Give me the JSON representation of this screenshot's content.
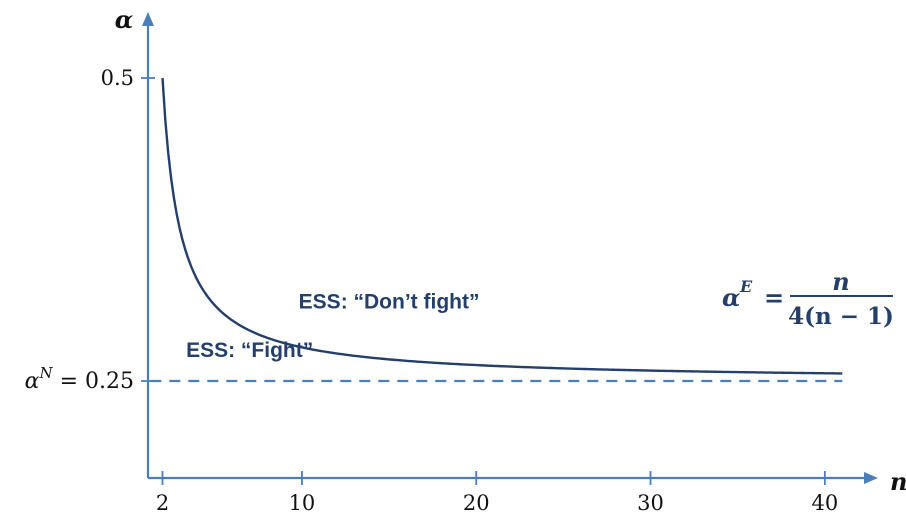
{
  "chart_data": {
    "type": "line",
    "x_label": "n",
    "y_label": "α",
    "x_ticks": [
      2,
      10,
      20,
      30,
      40
    ],
    "y_ticks": [
      {
        "value": 0.5,
        "label": "0.5"
      },
      {
        "value": 0.25,
        "label": "α^N = 0.25"
      }
    ],
    "xlim": [
      1.3,
      42
    ],
    "ylim": [
      0.17,
      0.5
    ],
    "series": [
      {
        "type": "curve",
        "formula": "n / (4(n − 1))",
        "color": "#243f6a",
        "x": [
          2,
          2.5,
          3,
          4,
          5,
          6,
          8,
          10,
          12,
          15,
          20,
          25,
          30,
          35,
          41
        ],
        "y": [
          0.5,
          0.4167,
          0.375,
          0.3333,
          0.3125,
          0.3,
          0.2857,
          0.2778,
          0.2727,
          0.2679,
          0.2632,
          0.2604,
          0.2586,
          0.2574,
          0.2563
        ]
      },
      {
        "type": "reference-line",
        "y": 0.25,
        "style": "dashed",
        "color": "#4a7ebb",
        "x": [
          1.3,
          41
        ]
      }
    ],
    "annotations": [
      {
        "text": "ESS: “Don’t fight”",
        "x": 15,
        "y": 0.31
      },
      {
        "text": "ESS: “Fight”",
        "x": 7,
        "y": 0.27
      }
    ],
    "curve_label": {
      "lhs_base": "α",
      "lhs_sup": "E",
      "equals": "=",
      "numerator": "n",
      "denominator": "4(n − 1)"
    },
    "grid": false
  }
}
